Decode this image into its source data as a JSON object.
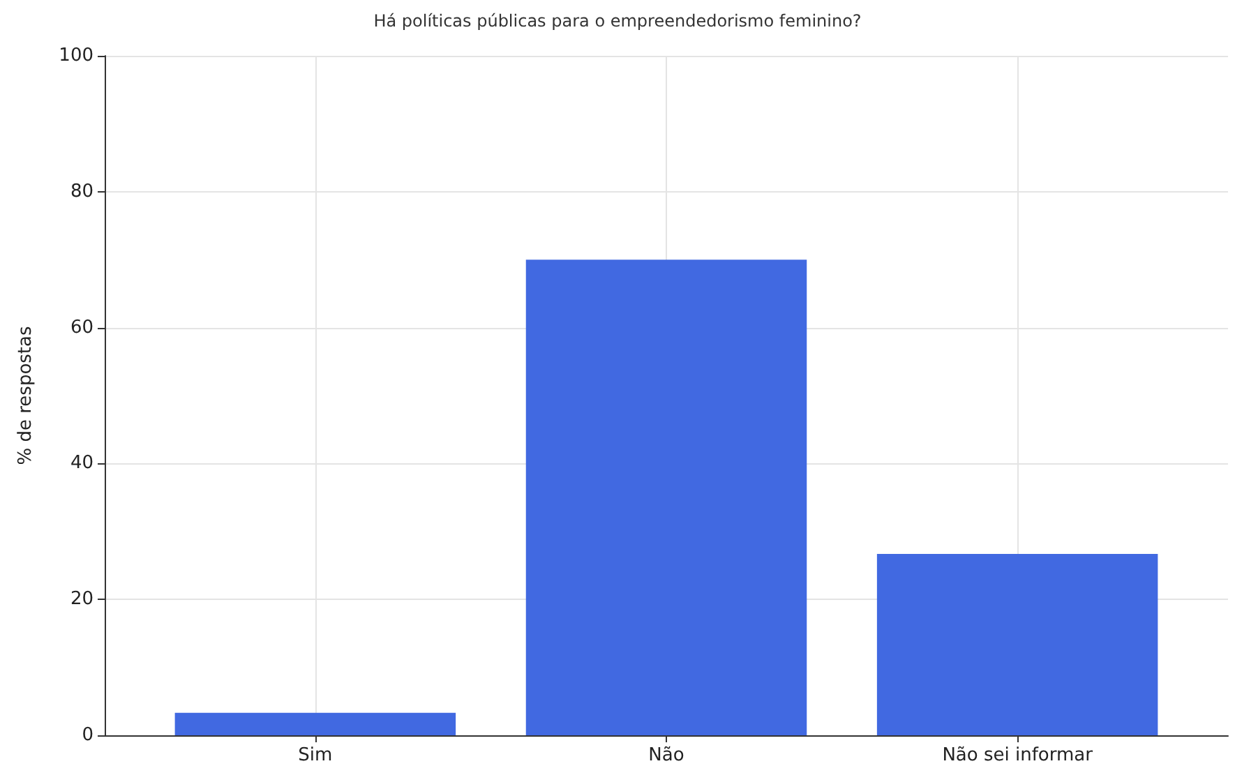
{
  "chart_data": {
    "type": "bar",
    "title": "Há políticas públicas para o empreendedorismo feminino?",
    "ylabel": "% de respostas",
    "categories": [
      "Sim",
      "Não",
      "Não sei informar"
    ],
    "values": [
      3.3,
      70,
      26.7
    ],
    "color": "#4169e1",
    "ylim": [
      0,
      100
    ],
    "yticks": [
      0,
      20,
      40,
      60,
      80,
      100
    ],
    "grid": true
  }
}
